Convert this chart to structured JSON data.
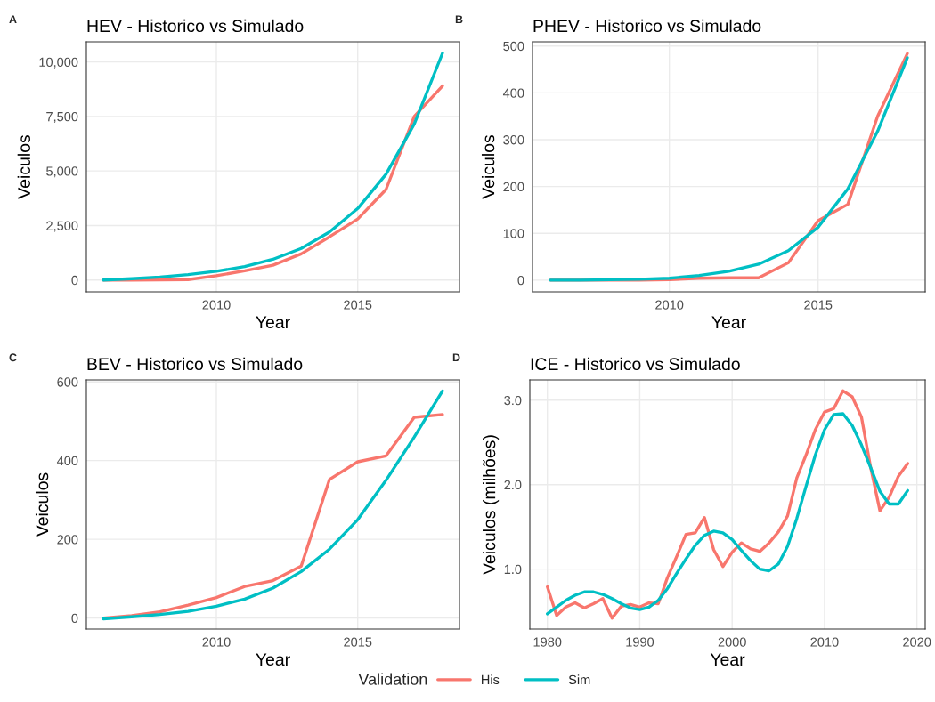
{
  "chart_data": [
    {
      "type": "line",
      "title": "HEV - Historico vs Simulado",
      "xlabel": "Year",
      "ylabel": "Veiculos",
      "annotations": [
        "A"
      ],
      "x": [
        2006,
        2007,
        2008,
        2009,
        2010,
        2011,
        2012,
        2013,
        2014,
        2015,
        2016,
        2017,
        2018
      ],
      "series": [
        {
          "color": "#f8766d",
          "values": [
            0,
            0,
            10,
            20,
            200,
            420,
            680,
            1200,
            1980,
            2800,
            4150,
            7500,
            8900
          ]
        },
        {
          "color": "#00bfc4",
          "values": [
            0,
            60,
            140,
            250,
            400,
            620,
            950,
            1450,
            2200,
            3280,
            4850,
            7150,
            10400
          ]
        }
      ],
      "xlim": [
        2005.4,
        2018.6
      ],
      "ylim": [
        -540,
        10920
      ],
      "xticks": [
        2010,
        2015
      ],
      "yticks": [
        0,
        {
          "value": 2500,
          "label": "2,500"
        },
        {
          "value": 5000,
          "label": "5,000"
        },
        {
          "value": 7500,
          "label": "7,500"
        },
        {
          "value": 10000,
          "label": "10,000"
        }
      ],
      "grid": true,
      "line_style": "solid"
    },
    {
      "type": "line",
      "title": "PHEV - Historico vs Simulado",
      "xlabel": "Year",
      "ylabel": "Veiculos",
      "annotations": [
        "B"
      ],
      "x": [
        2006,
        2007,
        2008,
        2009,
        2010,
        2011,
        2012,
        2013,
        2014,
        2015,
        2016,
        2017,
        2018
      ],
      "series": [
        {
          "color": "#f8766d",
          "values": [
            0,
            0,
            0,
            0,
            1,
            4,
            5,
            5,
            37,
            127,
            162,
            350,
            484
          ]
        },
        {
          "color": "#00bfc4",
          "values": [
            0,
            0,
            1,
            2,
            4,
            10,
            19,
            34,
            63,
            113,
            195,
            318,
            475
          ]
        }
      ],
      "xlim": [
        2005.4,
        2018.6
      ],
      "ylim": [
        -25,
        509
      ],
      "xticks": [
        2010,
        2015
      ],
      "yticks": [
        0,
        100,
        200,
        300,
        400,
        500
      ],
      "grid": true,
      "line_style": "solid"
    },
    {
      "type": "line",
      "title": "BEV - Historico vs Simulado",
      "xlabel": "Year",
      "ylabel": "Veiculos",
      "annotations": [
        "C"
      ],
      "x": [
        2006,
        2007,
        2008,
        2009,
        2010,
        2011,
        2012,
        2013,
        2014,
        2015,
        2016,
        2017,
        2018
      ],
      "series": [
        {
          "color": "#f8766d",
          "values": [
            0,
            6,
            16,
            33,
            52,
            80,
            95,
            132,
            352,
            397,
            412,
            510,
            517
          ]
        },
        {
          "color": "#00bfc4",
          "values": [
            -2,
            3,
            9,
            17,
            30,
            48,
            76,
            118,
            175,
            250,
            350,
            460,
            577
          ]
        }
      ],
      "xlim": [
        2005.4,
        2018.6
      ],
      "ylim": [
        -28,
        605
      ],
      "xticks": [
        2010,
        2015
      ],
      "yticks": [
        0,
        200,
        400,
        600
      ],
      "grid": true,
      "line_style": "solid"
    },
    {
      "type": "line",
      "title": "ICE - Historico vs Simulado",
      "xlabel": "Year",
      "ylabel": "Veiculos (milhões)",
      "annotations": [
        "D"
      ],
      "x": [
        1980,
        1981,
        1982,
        1983,
        1984,
        1985,
        1986,
        1987,
        1988,
        1989,
        1990,
        1991,
        1992,
        1993,
        1994,
        1995,
        1996,
        1997,
        1998,
        1999,
        2000,
        2001,
        2002,
        2003,
        2004,
        2005,
        2006,
        2007,
        2008,
        2009,
        2010,
        2011,
        2012,
        2013,
        2014,
        2015,
        2016,
        2017,
        2018,
        2019
      ],
      "series": [
        {
          "name": "His",
          "color": "#f8766d",
          "values": [
            0.79,
            0.45,
            0.55,
            0.6,
            0.54,
            0.59,
            0.65,
            0.42,
            0.56,
            0.58,
            0.55,
            0.6,
            0.59,
            0.9,
            1.15,
            1.41,
            1.43,
            1.61,
            1.23,
            1.03,
            1.2,
            1.31,
            1.24,
            1.21,
            1.31,
            1.44,
            1.63,
            2.08,
            2.35,
            2.65,
            2.86,
            2.9,
            3.11,
            3.04,
            2.8,
            2.2,
            1.69,
            1.85,
            2.1,
            2.25
          ]
        },
        {
          "name": "Sim",
          "color": "#00bfc4",
          "values": [
            0.47,
            0.55,
            0.63,
            0.69,
            0.73,
            0.73,
            0.7,
            0.65,
            0.59,
            0.54,
            0.52,
            0.55,
            0.63,
            0.77,
            0.95,
            1.12,
            1.28,
            1.4,
            1.45,
            1.43,
            1.35,
            1.22,
            1.1,
            1.0,
            0.98,
            1.06,
            1.27,
            1.6,
            1.98,
            2.35,
            2.65,
            2.83,
            2.84,
            2.7,
            2.47,
            2.2,
            1.92,
            1.77,
            1.77,
            1.93
          ]
        }
      ],
      "xlim": [
        1978.1,
        2020.9
      ],
      "ylim": [
        0.29,
        3.24
      ],
      "xticks": [
        1980,
        1990,
        2000,
        2010,
        2020
      ],
      "yticks": [
        {
          "value": 1,
          "label": "1.0"
        },
        {
          "value": 2,
          "label": "2.0"
        },
        {
          "value": 3,
          "label": "3.0"
        }
      ],
      "grid": true,
      "line_style": "solid",
      "legend": "bottom",
      "legend_title": "Validation"
    }
  ]
}
